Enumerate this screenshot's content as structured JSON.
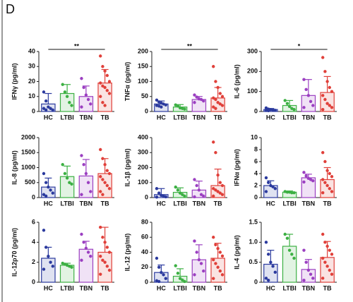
{
  "panel_label": "D",
  "chart_data": [
    {
      "type": "bar",
      "ylabel": "IFNγ (pg/ml)",
      "categories": [
        "HC",
        "LTBI",
        "TBN",
        "TB"
      ],
      "colors": [
        "#2b3a9e",
        "#3cb043",
        "#9b3fc1",
        "#e0403a"
      ],
      "values": [
        5,
        12,
        10,
        19
      ],
      "errors": [
        7,
        6,
        7,
        9
      ],
      "points": [
        [
          13,
          7,
          3,
          2,
          1,
          2,
          1
        ],
        [
          18,
          13,
          10,
          6,
          4
        ],
        [
          22,
          16,
          11,
          8,
          5,
          3
        ],
        [
          37,
          30,
          27,
          24,
          20,
          19,
          17,
          16,
          14,
          12,
          10,
          6,
          4
        ]
      ],
      "ylim": [
        0,
        40
      ],
      "yticks": [
        0,
        10,
        20,
        30,
        40
      ],
      "significance": "**"
    },
    {
      "type": "bar",
      "ylabel": "TNFα (pg/ml)",
      "categories": [
        "HC",
        "LTBI",
        "TBN",
        "TB"
      ],
      "colors": [
        "#2b3a9e",
        "#3cb043",
        "#9b3fc1",
        "#e0403a"
      ],
      "values": [
        25,
        15,
        40,
        45
      ],
      "errors": [
        10,
        8,
        10,
        35
      ],
      "points": [
        [
          38,
          32,
          28,
          25,
          22,
          20,
          18,
          15
        ],
        [
          22,
          18,
          12,
          10,
          8
        ],
        [
          55,
          48,
          42,
          40,
          35,
          30
        ],
        [
          150,
          100,
          80,
          60,
          50,
          45,
          40,
          30,
          25,
          20,
          15,
          10
        ]
      ],
      "ylim": [
        0,
        200
      ],
      "yticks": [
        0,
        50,
        100,
        150,
        200
      ],
      "significance": "**"
    },
    {
      "type": "bar",
      "ylabel": "IL-6 (pg/ml)",
      "categories": [
        "HC",
        "LTBI",
        "TBN",
        "TB"
      ],
      "colors": [
        "#2b3a9e",
        "#3cb043",
        "#9b3fc1",
        "#e0403a"
      ],
      "values": [
        10,
        30,
        80,
        95
      ],
      "errors": [
        5,
        25,
        80,
        80
      ],
      "points": [
        [
          18,
          12,
          10,
          8,
          6,
          5,
          4
        ],
        [
          55,
          40,
          25,
          15,
          10
        ],
        [
          160,
          110,
          80,
          50,
          30,
          20
        ],
        [
          270,
          200,
          150,
          120,
          100,
          80,
          60,
          40,
          30,
          20,
          10
        ]
      ],
      "ylim": [
        0,
        300
      ],
      "yticks": [
        0,
        100,
        200,
        300
      ],
      "significance": "*"
    },
    {
      "type": "bar",
      "ylabel": "IL-8 (pg/ml)",
      "categories": [
        "HC",
        "LTBI",
        "TBN",
        "TB"
      ],
      "colors": [
        "#2b3a9e",
        "#3cb043",
        "#9b3fc1",
        "#e0403a"
      ],
      "values": [
        350,
        700,
        720,
        800
      ],
      "errors": [
        300,
        350,
        550,
        500
      ],
      "points": [
        [
          800,
          500,
          350,
          250,
          150,
          100,
          50
        ],
        [
          1100,
          800,
          650,
          500,
          450
        ],
        [
          1400,
          1100,
          800,
          500,
          200,
          100
        ],
        [
          1600,
          1300,
          1100,
          900,
          800,
          700,
          600,
          500,
          400,
          300,
          200,
          100
        ]
      ],
      "ylim": [
        0,
        2000
      ],
      "yticks": [
        0,
        500,
        1000,
        1500,
        2000
      ]
    },
    {
      "type": "bar",
      "ylabel": "IL-1β (pg/ml)",
      "categories": [
        "HC",
        "LTBI",
        "TBN",
        "TB"
      ],
      "colors": [
        "#2b3a9e",
        "#3cb043",
        "#9b3fc1",
        "#e0403a"
      ],
      "values": [
        20,
        35,
        50,
        80
      ],
      "errors": [
        40,
        30,
        60,
        110
      ],
      "points": [
        [
          60,
          30,
          15,
          10,
          5,
          3
        ],
        [
          70,
          50,
          30,
          20,
          10
        ],
        [
          120,
          80,
          50,
          20,
          10,
          5
        ],
        [
          370,
          300,
          150,
          100,
          80,
          60,
          50,
          40,
          30,
          20,
          10
        ]
      ],
      "ylim": [
        0,
        400
      ],
      "yticks": [
        0,
        100,
        200,
        300,
        400
      ]
    },
    {
      "type": "bar",
      "ylabel": "IFNα (pg/ml)",
      "categories": [
        "HC",
        "LTBI",
        "TBN",
        "TB"
      ],
      "colors": [
        "#2b3a9e",
        "#3cb043",
        "#9b3fc1",
        "#e0403a"
      ],
      "values": [
        2,
        0.9,
        3.3,
        3.0
      ],
      "errors": [
        0.8,
        0.2,
        0.6,
        2
      ],
      "points": [
        [
          3.3,
          2.5,
          2.0,
          1.8,
          1.5,
          1.0
        ],
        [
          1.0,
          0.9,
          0.9,
          0.8,
          0.8
        ],
        [
          4.2,
          3.6,
          3.2,
          3.0,
          2.8,
          2.6
        ],
        [
          7.5,
          6.0,
          4.5,
          4.0,
          3.5,
          3.0,
          2.5,
          2.0,
          1.5,
          1.0,
          0.8
        ]
      ],
      "ylim": [
        0,
        10
      ],
      "yticks": [
        0,
        2,
        4,
        6,
        8,
        10
      ]
    },
    {
      "type": "bar",
      "ylabel": "IL-12p70 (pg/ml)",
      "categories": [
        "HC",
        "LTBI",
        "TBN",
        "TB"
      ],
      "colors": [
        "#2b3a9e",
        "#3cb043",
        "#9b3fc1",
        "#e0403a"
      ],
      "values": [
        2.4,
        1.7,
        3.3,
        3.0
      ],
      "errors": [
        1.1,
        0.2,
        0.8,
        2.5
      ],
      "points": [
        [
          5.2,
          3.5,
          2.6,
          2.0,
          1.6,
          1.3
        ],
        [
          1.9,
          1.8,
          1.7,
          1.6,
          1.5
        ],
        [
          4.8,
          4.0,
          3.4,
          3.0,
          2.6,
          2.2
        ],
        [
          5.5,
          4.5,
          4.0,
          3.5,
          3.0,
          2.6,
          2.2,
          2.0,
          1.6,
          1.2,
          0.8
        ]
      ],
      "ylim": [
        0,
        6
      ],
      "yticks": [
        0,
        2,
        4,
        6
      ]
    },
    {
      "type": "bar",
      "ylabel": "IL-12 (pg/ml)",
      "categories": [
        "HC",
        "LTBI",
        "TBN",
        "TB"
      ],
      "colors": [
        "#2b3a9e",
        "#3cb043",
        "#9b3fc1",
        "#e0403a"
      ],
      "values": [
        13,
        8,
        30,
        32
      ],
      "errors": [
        10,
        10,
        20,
        20
      ],
      "points": [
        [
          32,
          20,
          13,
          10,
          5,
          2,
          1
        ],
        [
          22,
          12,
          5,
          3,
          1
        ],
        [
          55,
          40,
          30,
          25,
          15,
          10
        ],
        [
          60,
          50,
          45,
          40,
          35,
          30,
          25,
          20,
          15,
          10,
          5
        ]
      ],
      "ylim": [
        0,
        80
      ],
      "yticks": [
        0,
        20,
        40,
        60,
        80
      ]
    },
    {
      "type": "bar",
      "ylabel": "IL-4 (pg/ml)",
      "categories": [
        "HC",
        "LTBI",
        "TBN",
        "TB"
      ],
      "colors": [
        "#2b3a9e",
        "#3cb043",
        "#9b3fc1",
        "#e0403a"
      ],
      "values": [
        0.45,
        0.9,
        0.32,
        0.62
      ],
      "errors": [
        0.35,
        0.3,
        0.25,
        0.4
      ],
      "points": [
        [
          1.0,
          0.7,
          0.5,
          0.4,
          0.25,
          0.1,
          0.05
        ],
        [
          1.2,
          1.1,
          0.8,
          0.7,
          0.6
        ],
        [
          0.8,
          0.5,
          0.3,
          0.2,
          0.1,
          0.05
        ],
        [
          1.2,
          1.0,
          0.9,
          0.8,
          0.7,
          0.6,
          0.5,
          0.4,
          0.3,
          0.2,
          0.1
        ]
      ],
      "ylim": [
        0,
        1.5
      ],
      "yticks": [
        0,
        0.5,
        {
          "value": 1,
          "label": "1.0"
        },
        1.5
      ]
    }
  ]
}
